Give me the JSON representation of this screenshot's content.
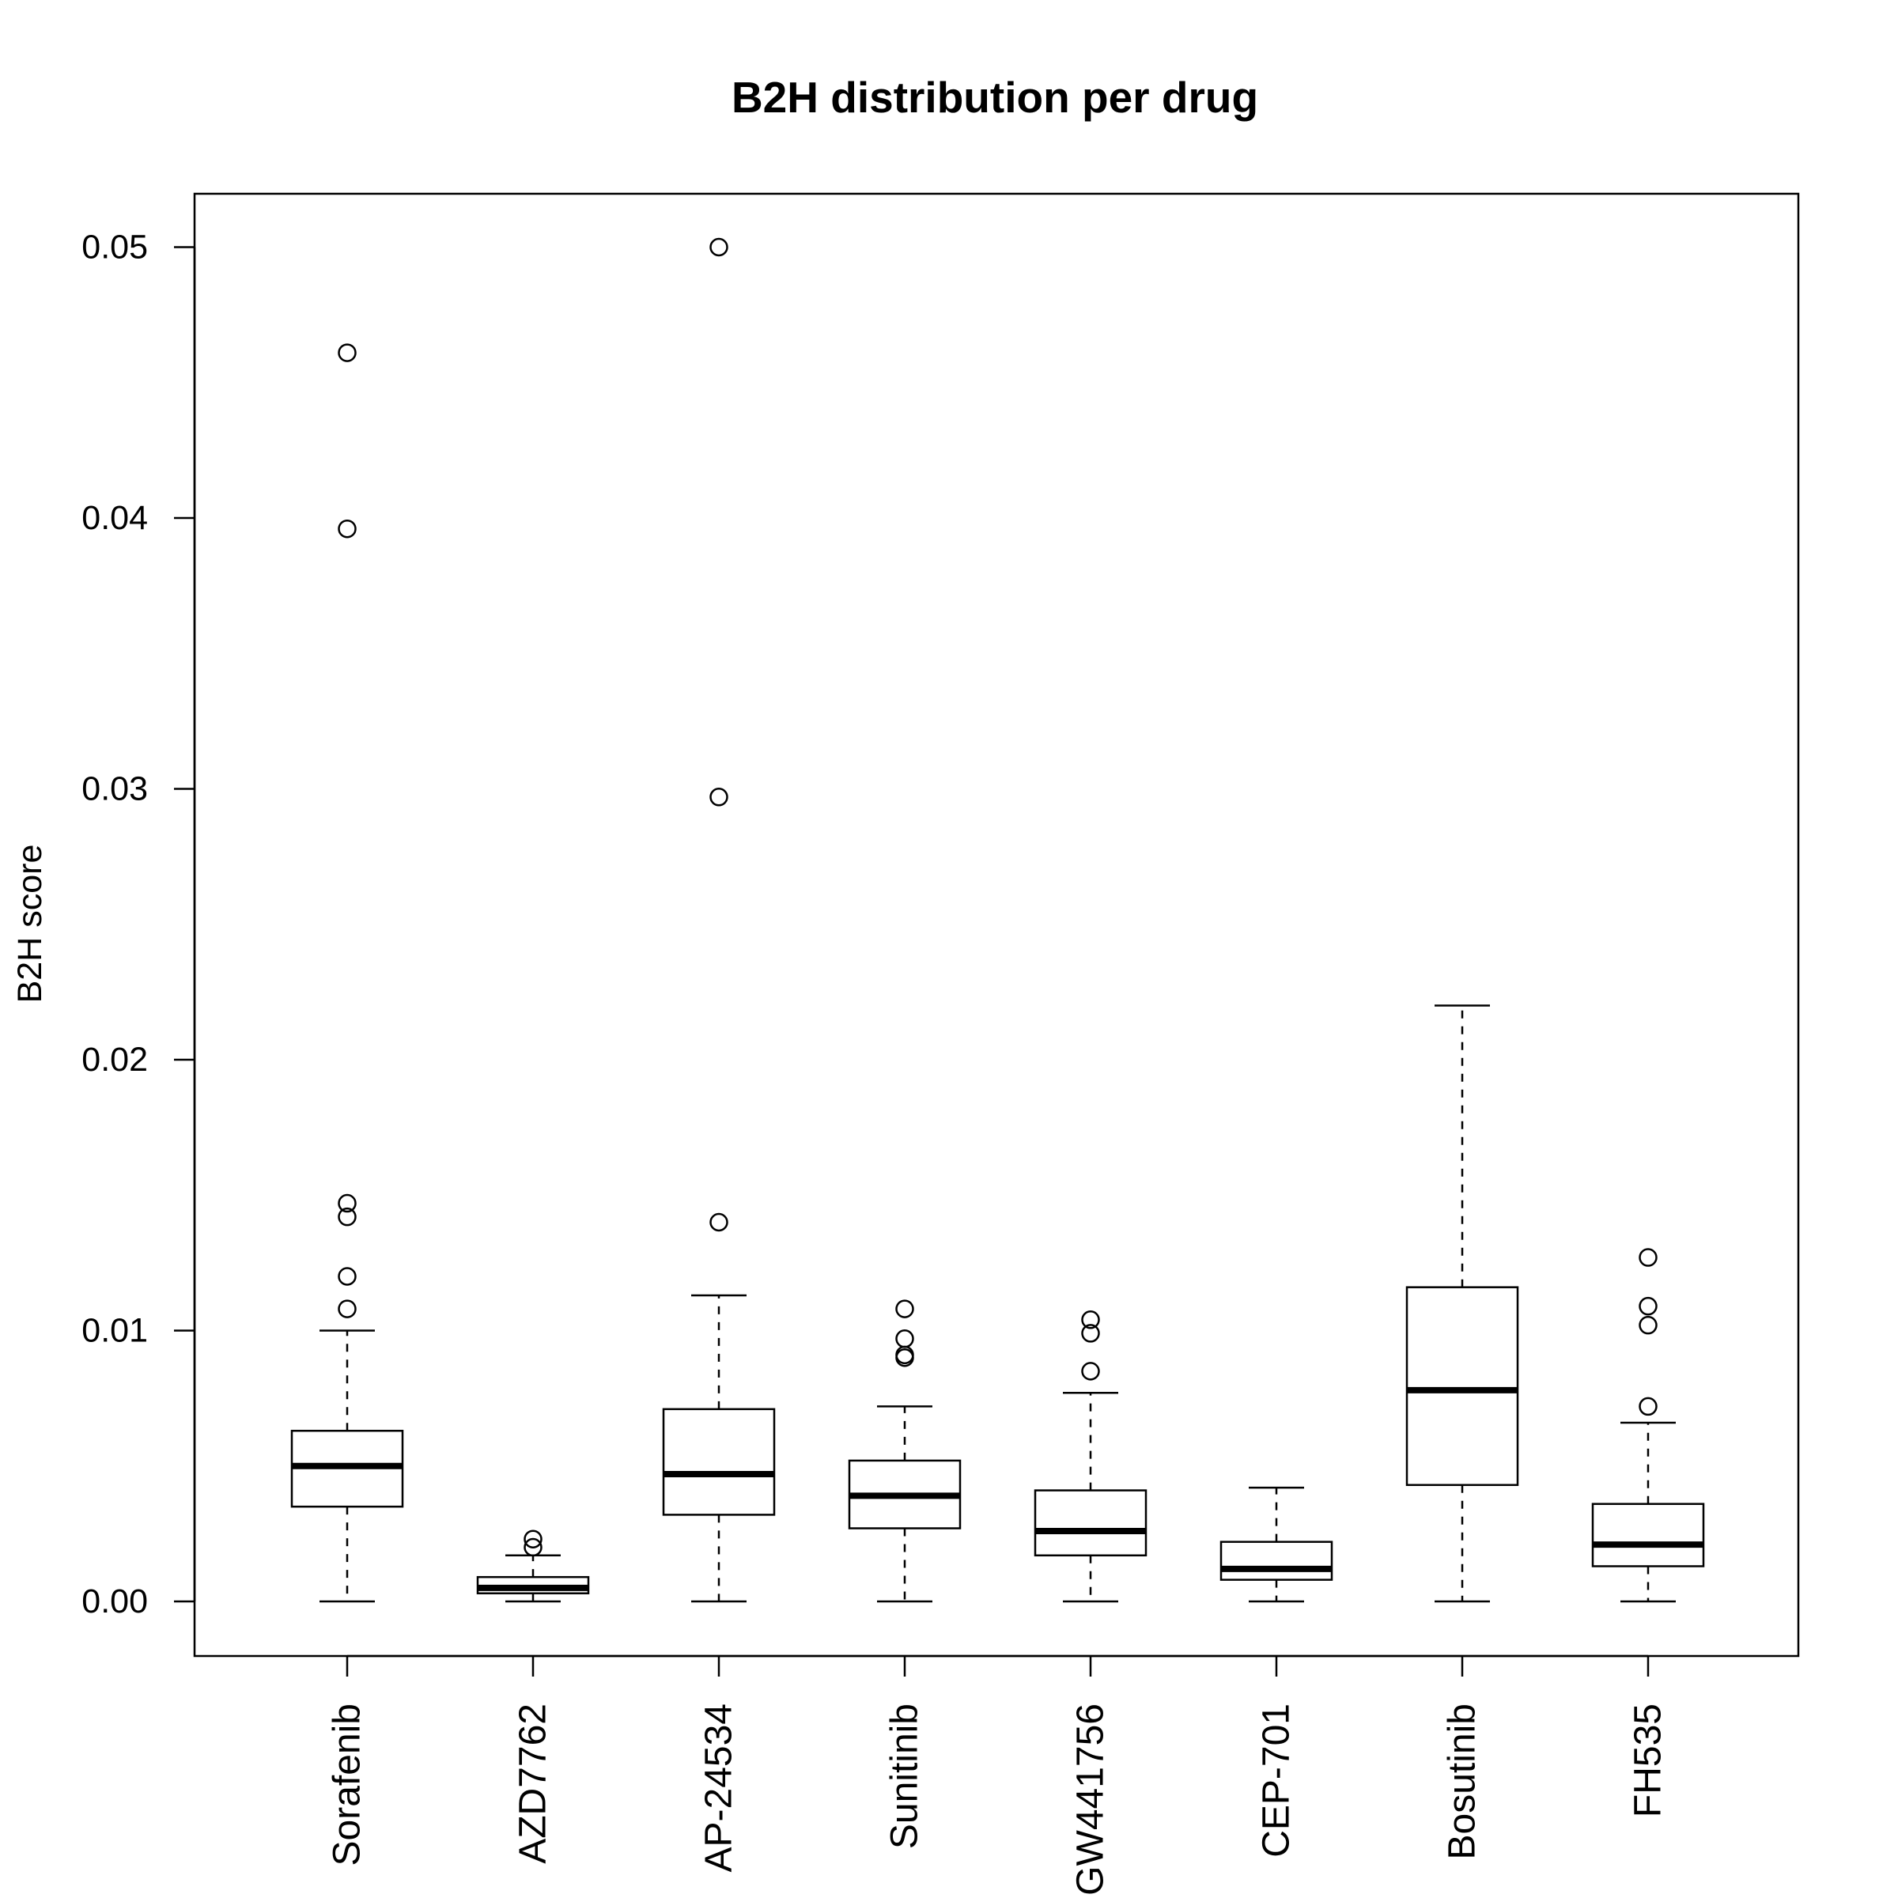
{
  "chart_data": {
    "type": "boxplot",
    "title": "B2H distribution per drug",
    "xlabel": "",
    "ylabel": "B2H score",
    "ylim": [
      -0.002,
      0.052
    ],
    "yticks": [
      0.0,
      0.01,
      0.02,
      0.03,
      0.04,
      0.05
    ],
    "ytick_labels": [
      "0.00",
      "0.01",
      "0.02",
      "0.03",
      "0.04",
      "0.05"
    ],
    "grid": false,
    "legend": "none",
    "categories": [
      "Sorafenib",
      "AZD7762",
      "AP-24534",
      "Sunitinib",
      "GW441756",
      "CEP-701",
      "Bosutinib",
      "FH535"
    ],
    "boxes": [
      {
        "name": "Sorafenib",
        "whisker_low": 0.0,
        "q1": 0.0035,
        "median": 0.005,
        "q3": 0.0063,
        "whisker_high": 0.01,
        "outliers": [
          0.0108,
          0.012,
          0.0142,
          0.0147,
          0.0396,
          0.0461
        ]
      },
      {
        "name": "AZD7762",
        "whisker_low": 0.0,
        "q1": 0.0003,
        "median": 0.0005,
        "q3": 0.0009,
        "whisker_high": 0.0017,
        "outliers": [
          0.002,
          0.0023
        ]
      },
      {
        "name": "AP-24534",
        "whisker_low": 0.0,
        "q1": 0.0032,
        "median": 0.0047,
        "q3": 0.0071,
        "whisker_high": 0.0113,
        "outliers": [
          0.014,
          0.0297,
          0.05
        ]
      },
      {
        "name": "Sunitinib",
        "whisker_low": 0.0,
        "q1": 0.0027,
        "median": 0.0039,
        "q3": 0.0052,
        "whisker_high": 0.0072,
        "outliers": [
          0.009,
          0.0091,
          0.0097,
          0.0108
        ]
      },
      {
        "name": "GW441756",
        "whisker_low": 0.0,
        "q1": 0.0017,
        "median": 0.0026,
        "q3": 0.0041,
        "whisker_high": 0.0077,
        "outliers": [
          0.0085,
          0.0099,
          0.0104
        ]
      },
      {
        "name": "CEP-701",
        "whisker_low": 0.0,
        "q1": 0.0008,
        "median": 0.0012,
        "q3": 0.0022,
        "whisker_high": 0.0042,
        "outliers": []
      },
      {
        "name": "Bosutinib",
        "whisker_low": 0.0,
        "q1": 0.0043,
        "median": 0.0078,
        "q3": 0.0116,
        "whisker_high": 0.022,
        "outliers": []
      },
      {
        "name": "FH535",
        "whisker_low": 0.0,
        "q1": 0.0013,
        "median": 0.0021,
        "q3": 0.0036,
        "whisker_high": 0.0066,
        "outliers": [
          0.0072,
          0.0102,
          0.0109,
          0.0127
        ]
      }
    ]
  }
}
